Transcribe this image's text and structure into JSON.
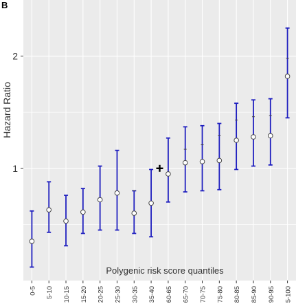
{
  "panel_label": "B",
  "chart_data": {
    "type": "scatter",
    "subtype": "point-with-error-bars",
    "title": "",
    "xlabel": "Polygenic risk score quantiles",
    "ylabel": "Hazard Ratio",
    "categories": [
      "0-5",
      "5-10",
      "10-15",
      "15-20",
      "20-25",
      "25-30",
      "30-35",
      "35-40",
      "60-65",
      "65-70",
      "70-75",
      "75-80",
      "80-85",
      "85-90",
      "90-95",
      "95-100"
    ],
    "estimate": [
      0.35,
      0.63,
      0.53,
      0.61,
      0.72,
      0.78,
      0.6,
      0.69,
      0.95,
      1.05,
      1.06,
      1.07,
      1.25,
      1.28,
      1.29,
      1.82
    ],
    "upper": [
      0.62,
      0.88,
      0.76,
      0.82,
      1.02,
      1.16,
      0.8,
      0.99,
      1.27,
      1.37,
      1.38,
      1.4,
      1.58,
      1.61,
      1.62,
      2.25
    ],
    "lower": [
      0.12,
      0.43,
      0.31,
      0.42,
      0.45,
      0.45,
      0.42,
      0.39,
      0.7,
      0.79,
      0.8,
      0.81,
      0.99,
      1.02,
      1.03,
      1.45
    ],
    "tick_mark": [
      null,
      null,
      null,
      null,
      null,
      null,
      0.8,
      null,
      null,
      1.17,
      1.21,
      1.29,
      1.43,
      1.46,
      1.47,
      1.98
    ],
    "reference_marker": {
      "symbol": "+",
      "between": [
        "35-40",
        "60-65"
      ],
      "y": 1.0
    },
    "y_ticks": [
      1,
      2
    ],
    "y_gridlines": [
      0.5,
      1,
      1.5,
      2
    ],
    "ylim": [
      0,
      2.5
    ],
    "grid": true,
    "colors": {
      "panel_background": "#ebebeb",
      "gridline": "#ffffff",
      "error_bar": "#1f1fbf",
      "point_fill": "#ffffff",
      "point_stroke": "#444444",
      "text": "#333333"
    }
  }
}
